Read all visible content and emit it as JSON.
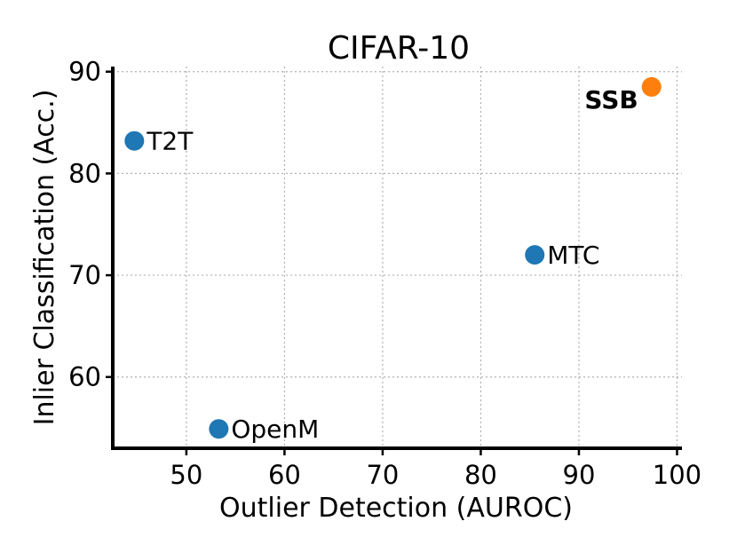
{
  "chart_data": {
    "type": "scatter",
    "title": "CIFAR-10",
    "xlabel": "Outlier Detection (AUROC)",
    "ylabel": "Inlier Classification (Acc.)",
    "xlim": [
      42.5,
      100.5
    ],
    "ylim": [
      53.0,
      90.5
    ],
    "xticks": [
      50,
      60,
      70,
      80,
      90,
      100
    ],
    "yticks": [
      60,
      70,
      80,
      90
    ],
    "grid": true,
    "points": [
      {
        "label": "T2T",
        "x": 44.7,
        "y": 83.2,
        "color": "#1f77b4",
        "bold": false,
        "label_side": "right"
      },
      {
        "label": "OpenM",
        "x": 53.3,
        "y": 54.9,
        "color": "#1f77b4",
        "bold": false,
        "label_side": "right"
      },
      {
        "label": "MTC",
        "x": 85.5,
        "y": 72.0,
        "color": "#1f77b4",
        "bold": false,
        "label_side": "right"
      },
      {
        "label": "SSB",
        "x": 97.4,
        "y": 88.5,
        "color": "#ff7f0e",
        "bold": true,
        "label_side": "left"
      }
    ]
  }
}
